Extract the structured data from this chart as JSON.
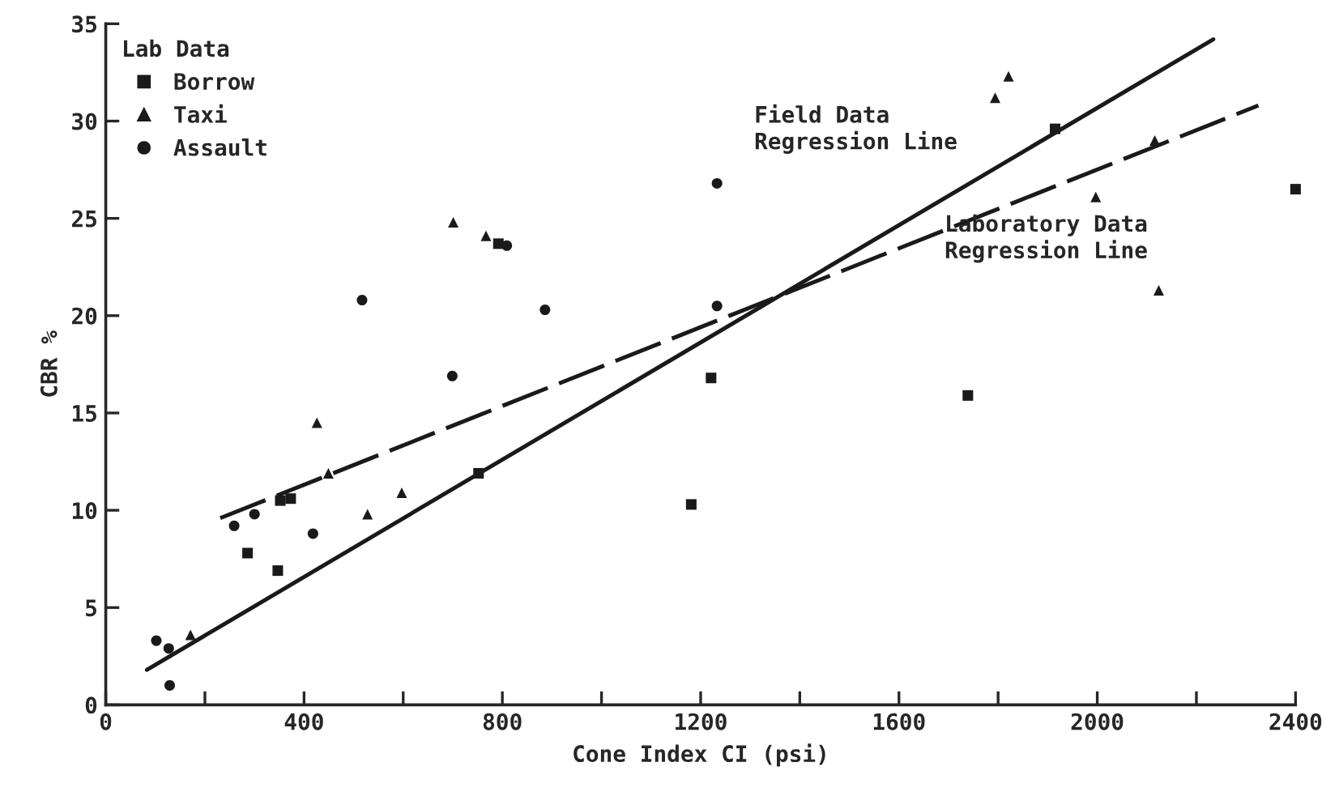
{
  "chart_data": {
    "type": "scatter",
    "xlabel": "Cone Index CI (psi)",
    "ylabel": "CBR %",
    "legend_title": "Lab Data",
    "legend": "top left",
    "grid": false,
    "xlim": [
      0,
      2400
    ],
    "ylim": [
      0,
      35
    ],
    "xticks": [
      0,
      {
        "value": 200,
        "label": null
      },
      400,
      {
        "value": 600,
        "label": null
      },
      800,
      {
        "value": 1000,
        "label": null
      },
      1200,
      {
        "value": 1400,
        "label": null
      },
      1600,
      {
        "value": 1800,
        "label": null
      },
      2000,
      {
        "value": 2200,
        "label": null
      },
      2400
    ],
    "yticks": [
      0,
      5,
      10,
      15,
      20,
      25,
      30,
      35
    ],
    "series": [
      {
        "name": "Borrow",
        "marker": "square",
        "color": "#1a1a1a",
        "x": [
          286,
          347,
          352,
          373,
          752,
          792,
          1181,
          1221,
          1739,
          1915,
          2400
        ],
        "values": [
          7.8,
          6.9,
          10.5,
          10.6,
          11.9,
          23.7,
          10.3,
          16.8,
          15.9,
          29.6,
          26.5
        ]
      },
      {
        "name": "Taxi",
        "marker": "triangle",
        "color": "#1a1a1a",
        "x": [
          171,
          426,
          449,
          528,
          597,
          701,
          767,
          1794,
          1821,
          1997,
          2116,
          2124
        ],
        "values": [
          3.6,
          14.5,
          11.9,
          9.8,
          10.9,
          24.8,
          24.1,
          31.2,
          32.3,
          26.1,
          29.0,
          21.3
        ]
      },
      {
        "name": "Assault",
        "marker": "circle",
        "color": "#1a1a1a",
        "x": [
          102,
          127,
          129,
          259,
          300,
          418,
          517,
          699,
          809,
          886,
          1233,
          1233
        ],
        "values": [
          3.3,
          2.9,
          1.0,
          9.2,
          9.8,
          8.8,
          20.8,
          16.9,
          23.6,
          20.3,
          26.8,
          20.5
        ]
      },
      {
        "type": "line",
        "line_style": "solid",
        "marker": "none",
        "color": "#1a1a1a",
        "x": [
          83,
          2234
        ],
        "values": [
          1.8,
          34.2
        ]
      },
      {
        "type": "line",
        "line_style": "dashed",
        "marker": "none",
        "color": "#1a1a1a",
        "x": [
          231,
          2325
        ],
        "values": [
          9.6,
          30.8
        ]
      }
    ],
    "annotations": [
      "Field Data\nRegression Line",
      "Laboratory Data\nRegression Line"
    ]
  }
}
